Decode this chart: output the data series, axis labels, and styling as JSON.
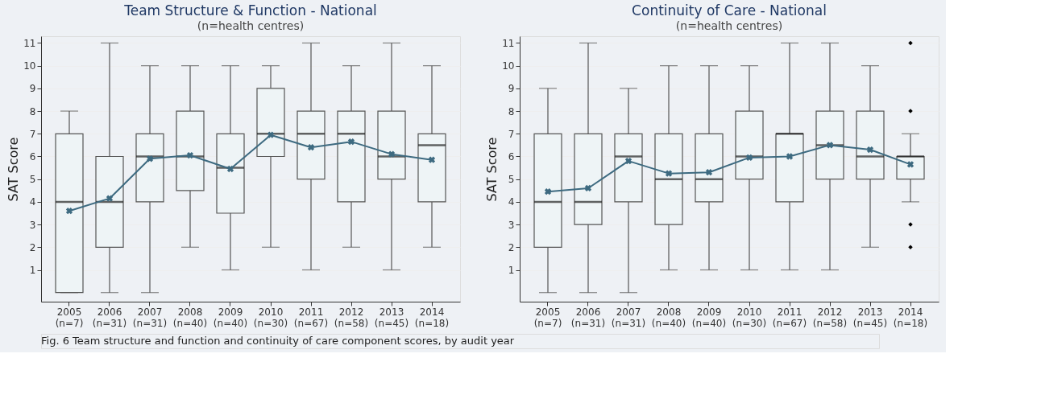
{
  "chart_data": [
    {
      "type": "box",
      "title": "Team Structure & Function - National",
      "subtitle": "(n=health centres)",
      "ylabel": "SAT Score",
      "categories": [
        "2005 (n=7)",
        "2006 (n=31)",
        "2007 (n=31)",
        "2008 (n=40)",
        "2009 (n=40)",
        "2010 (n=30)",
        "2011 (n=67)",
        "2012 (n=58)",
        "2013 (n=45)",
        "2014 (n=18)"
      ],
      "boxes": [
        {
          "low": 0,
          "q1": 0,
          "median": 4,
          "q3": 7,
          "high": 8
        },
        {
          "low": 0,
          "q1": 2,
          "median": 4,
          "q3": 6,
          "high": 11
        },
        {
          "low": 0,
          "q1": 4,
          "median": 6,
          "q3": 7,
          "high": 10
        },
        {
          "low": 2,
          "q1": 4.5,
          "median": 6,
          "q3": 8,
          "high": 10
        },
        {
          "low": 1,
          "q1": 3.5,
          "median": 5.5,
          "q3": 7,
          "high": 10
        },
        {
          "low": 2,
          "q1": 6,
          "median": 7,
          "q3": 9,
          "high": 10
        },
        {
          "low": 1,
          "q1": 5,
          "median": 7,
          "q3": 8,
          "high": 11
        },
        {
          "low": 2,
          "q1": 4,
          "median": 7,
          "q3": 8,
          "high": 10
        },
        {
          "low": 1,
          "q1": 5,
          "median": 6,
          "q3": 8,
          "high": 11
        },
        {
          "low": 2,
          "q1": 4,
          "median": 6.5,
          "q3": 7,
          "high": 10
        }
      ],
      "colors": [
        "#eef4f6",
        "#eef4f6",
        "#eef4f6",
        "#eef4f6",
        "#eef4f6",
        "#eef4f6",
        "#eef4f6",
        "#eef4f6",
        "#eef4f6",
        "#eef4f6"
      ],
      "series": [
        {
          "type": "line",
          "color": "#3d6a80",
          "marker": "cross",
          "values": [
            3.6,
            4.15,
            5.9,
            6.05,
            5.45,
            6.95,
            6.4,
            6.65,
            6.1,
            5.85
          ]
        }
      ],
      "ylim": [
        -0.4,
        11.3
      ],
      "yticks": [
        1,
        2,
        3,
        4,
        5,
        6,
        7,
        8,
        9,
        10,
        11
      ],
      "grid": "y"
    },
    {
      "type": "box",
      "title": "Continuity of Care - National",
      "subtitle": "(n=health centres)",
      "ylabel": "SAT Score",
      "categories": [
        "2005 (n=7)",
        "2006 (n=31)",
        "2007 (n=31)",
        "2008 (n=40)",
        "2009 (n=40)",
        "2010 (n=30)",
        "2011 (n=67)",
        "2012 (n=58)",
        "2013 (n=45)",
        "2014 (n=18)"
      ],
      "boxes": [
        {
          "low": 0,
          "q1": 2,
          "median": 4,
          "q3": 7,
          "high": 9
        },
        {
          "low": 0,
          "q1": 3,
          "median": 4,
          "q3": 7,
          "high": 11
        },
        {
          "low": 0,
          "q1": 4,
          "median": 6,
          "q3": 7,
          "high": 9
        },
        {
          "low": 1,
          "q1": 3,
          "median": 5,
          "q3": 7,
          "high": 10
        },
        {
          "low": 1,
          "q1": 4,
          "median": 5,
          "q3": 7,
          "high": 10
        },
        {
          "low": 1,
          "q1": 5,
          "median": 6,
          "q3": 8,
          "high": 10
        },
        {
          "low": 1,
          "q1": 4,
          "median": 7,
          "q3": 7,
          "high": 11
        },
        {
          "low": 1,
          "q1": 5,
          "median": 6.5,
          "q3": 8,
          "high": 11
        },
        {
          "low": 2,
          "q1": 5,
          "median": 6,
          "q3": 8,
          "high": 10
        },
        {
          "low": 4,
          "q1": 5,
          "median": 6,
          "q3": 6,
          "high": 7,
          "outliers": [
            2,
            3,
            8,
            11
          ]
        }
      ],
      "colors": [
        "#eef4f6",
        "#eef4f6",
        "#eef4f6",
        "#eef4f6",
        "#eef4f6",
        "#eef4f6",
        "#eef4f6",
        "#eef4f6",
        "#eef4f6",
        "#eef4f6"
      ],
      "series": [
        {
          "type": "line",
          "color": "#3d6a80",
          "marker": "cross",
          "values": [
            4.45,
            4.6,
            5.8,
            5.25,
            5.3,
            5.95,
            6.0,
            6.5,
            6.3,
            5.65
          ]
        }
      ],
      "ylim": [
        -0.4,
        11.3
      ],
      "yticks": [
        1,
        2,
        3,
        4,
        5,
        6,
        7,
        8,
        9,
        10,
        11
      ],
      "grid": "y",
      "annotations": [
        "Fig. 6 Team structure and function and continuity of care component scores, by audit year"
      ]
    }
  ]
}
